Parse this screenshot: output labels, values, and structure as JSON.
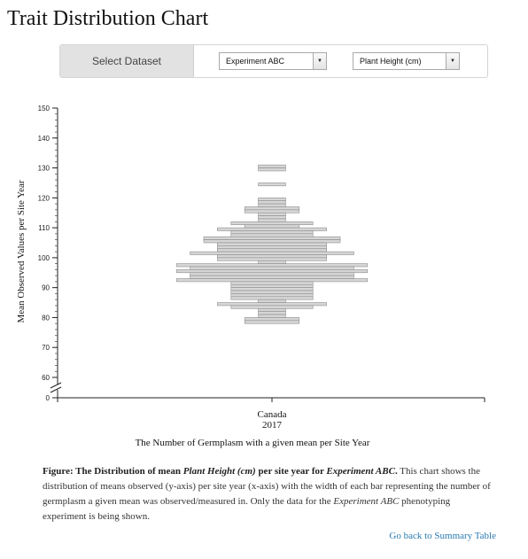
{
  "page": {
    "title": "Trait Distribution Chart"
  },
  "controls": {
    "label": "Select Dataset",
    "dataset_selected": "Experiment ABC",
    "trait_selected": "Plant Height (cm)"
  },
  "chart_data": {
    "type": "bar",
    "orientation": "horizontal-centered",
    "xlabel": "The Number of Germplasm with a given mean per Site Year",
    "ylabel": "Mean Observed Values per Site Year",
    "ylim": [
      0,
      150
    ],
    "y_axis_break": true,
    "y_ticks": [
      0,
      60,
      70,
      80,
      90,
      100,
      110,
      120,
      130,
      140,
      150
    ],
    "categories": [
      {
        "site": "Canada",
        "year": "2017"
      }
    ],
    "grid": false,
    "legend": "none",
    "bars": [
      {
        "y": 130.5,
        "count": 2
      },
      {
        "y": 129.5,
        "count": 2
      },
      {
        "y": 124.5,
        "count": 2
      },
      {
        "y": 119.5,
        "count": 2
      },
      {
        "y": 118.5,
        "count": 2
      },
      {
        "y": 117.5,
        "count": 2
      },
      {
        "y": 116.5,
        "count": 4
      },
      {
        "y": 115.5,
        "count": 4
      },
      {
        "y": 114.5,
        "count": 2
      },
      {
        "y": 113.5,
        "count": 2
      },
      {
        "y": 112.5,
        "count": 2
      },
      {
        "y": 111.5,
        "count": 6
      },
      {
        "y": 110.5,
        "count": 4
      },
      {
        "y": 109.5,
        "count": 8
      },
      {
        "y": 108.5,
        "count": 6
      },
      {
        "y": 107.5,
        "count": 6
      },
      {
        "y": 106.5,
        "count": 10
      },
      {
        "y": 105.5,
        "count": 10
      },
      {
        "y": 104.5,
        "count": 8
      },
      {
        "y": 103.5,
        "count": 8
      },
      {
        "y": 102.5,
        "count": 8
      },
      {
        "y": 101.5,
        "count": 12
      },
      {
        "y": 100.5,
        "count": 8
      },
      {
        "y": 99.5,
        "count": 8
      },
      {
        "y": 98.5,
        "count": 2
      },
      {
        "y": 97.5,
        "count": 14
      },
      {
        "y": 96.5,
        "count": 12
      },
      {
        "y": 95.5,
        "count": 14
      },
      {
        "y": 94.5,
        "count": 12
      },
      {
        "y": 93.5,
        "count": 12
      },
      {
        "y": 92.5,
        "count": 14
      },
      {
        "y": 91.5,
        "count": 6
      },
      {
        "y": 90.5,
        "count": 6
      },
      {
        "y": 89.5,
        "count": 6
      },
      {
        "y": 88.5,
        "count": 6
      },
      {
        "y": 87.5,
        "count": 6
      },
      {
        "y": 86.5,
        "count": 6
      },
      {
        "y": 85.5,
        "count": 2
      },
      {
        "y": 84.5,
        "count": 8
      },
      {
        "y": 83.5,
        "count": 6
      },
      {
        "y": 82.5,
        "count": 2
      },
      {
        "y": 81.5,
        "count": 2
      },
      {
        "y": 80.5,
        "count": 2
      },
      {
        "y": 79.5,
        "count": 4
      },
      {
        "y": 78.5,
        "count": 4
      }
    ]
  },
  "caption": {
    "bold_prefix": "Figure: The Distribution of mean ",
    "bold_trait": "Plant Height (cm)",
    "bold_middle": " per site year for ",
    "bold_experiment": "Experiment ABC",
    "bold_end": ".",
    "text_1": " This chart shows the distribution of means observed (y-axis) per site year (x-axis) with the width of each bar representing the number of germplasm a given mean was observed/measured in. Only the data for the ",
    "text_experiment": "Experiment ABC",
    "text_2": " phenotyping experiment is being shown."
  },
  "links": {
    "back": "Go back to Summary Table"
  }
}
